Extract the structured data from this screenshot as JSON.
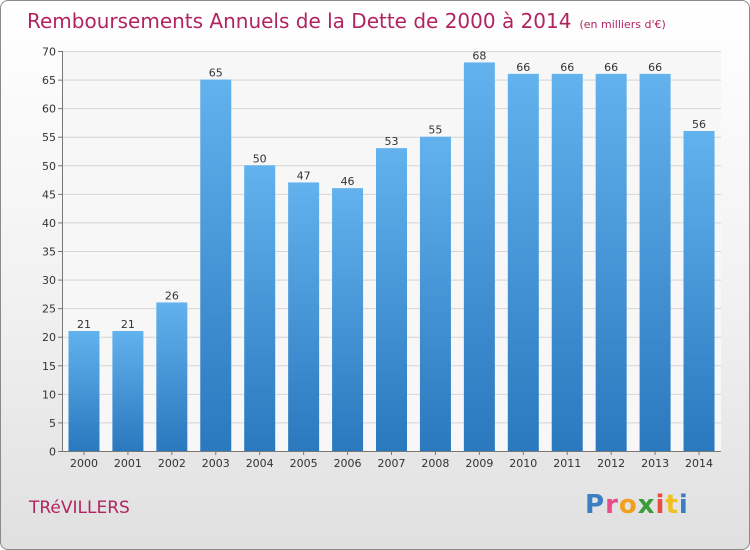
{
  "chart_data": {
    "type": "bar",
    "title": "Remboursements Annuels de la Dette de 2000 à 2014",
    "subtitle": "(en milliers d'€)",
    "categories": [
      "2000",
      "2001",
      "2002",
      "2003",
      "2004",
      "2005",
      "2006",
      "2007",
      "2008",
      "2009",
      "2010",
      "2011",
      "2012",
      "2013",
      "2014"
    ],
    "values": [
      21,
      21,
      26,
      65,
      50,
      47,
      46,
      53,
      55,
      68,
      66,
      66,
      66,
      66,
      56
    ],
    "xlabel": "",
    "ylabel": "",
    "ylim": [
      0,
      70
    ],
    "yticks": [
      0,
      5,
      10,
      15,
      20,
      25,
      30,
      35,
      40,
      45,
      50,
      55,
      60,
      65,
      70
    ],
    "grid": true,
    "bar_color": "#3b8fd6"
  },
  "footer": {
    "commune": "TRéVILLERS",
    "brand_letters": [
      {
        "ch": "P",
        "color": "#3a7fc4"
      },
      {
        "ch": "r",
        "color": "#e84c8a"
      },
      {
        "ch": "o",
        "color": "#f0a020"
      },
      {
        "ch": "x",
        "color": "#3a9c3a"
      },
      {
        "ch": "i",
        "color": "#e84c3a"
      },
      {
        "ch": "t",
        "color": "#f0c020"
      },
      {
        "ch": "i",
        "color": "#3a7fc4"
      }
    ]
  }
}
